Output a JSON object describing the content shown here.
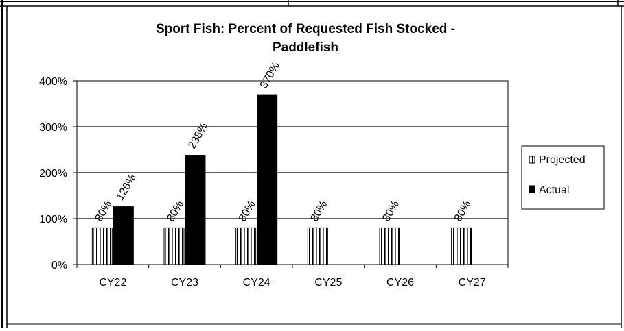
{
  "chart_data": {
    "type": "bar",
    "title": "Sport Fish: Percent of Requested Fish Stocked -",
    "subtitle": "Paddlefish",
    "categories": [
      "CY22",
      "CY23",
      "CY24",
      "CY25",
      "CY26",
      "CY27"
    ],
    "series": [
      {
        "name": "Projected",
        "values": [
          80,
          80,
          80,
          80,
          80,
          80
        ],
        "labels": [
          "80%",
          "80%",
          "80%",
          "80%",
          "80%",
          "80%"
        ],
        "pattern": "vertical-stripes"
      },
      {
        "name": "Actual",
        "values": [
          126,
          238,
          370,
          null,
          null,
          null
        ],
        "labels": [
          "126%",
          "238%",
          "370%",
          "",
          "",
          ""
        ],
        "color": "#000000"
      }
    ],
    "yticks": [
      "0%",
      "100%",
      "200%",
      "300%",
      "400%"
    ],
    "ylim": [
      0,
      400
    ],
    "grid": true,
    "legend_position": "right"
  }
}
